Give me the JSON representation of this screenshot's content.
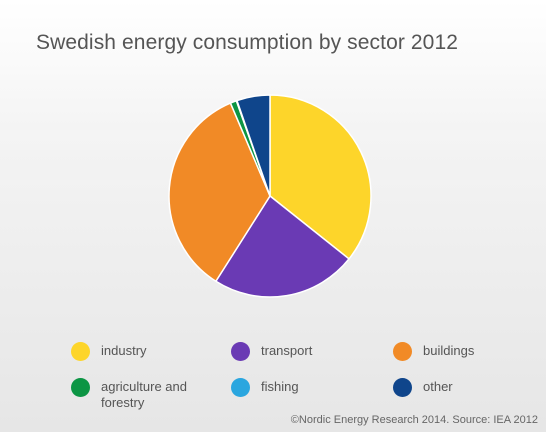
{
  "chart_data": {
    "type": "pie",
    "title": "Swedish energy consumption by sector 2012",
    "slices": [
      {
        "label": "industry",
        "value": 35.7,
        "color": "#fdd52a"
      },
      {
        "label": "transport",
        "value": 23.3,
        "color": "#6a3ab4"
      },
      {
        "label": "buildings",
        "value": 34.6,
        "color": "#f18a26"
      },
      {
        "label": "agriculture and forestry",
        "value": 1.0,
        "color": "#0c9544"
      },
      {
        "label": "fishing",
        "value": 0.1,
        "color": "#2aa6df"
      },
      {
        "label": "other",
        "value": 5.3,
        "color": "#0f458b"
      }
    ],
    "legend_position": "bottom"
  },
  "source": "©Nordic Energy Research 2014. Source: IEA 2012"
}
